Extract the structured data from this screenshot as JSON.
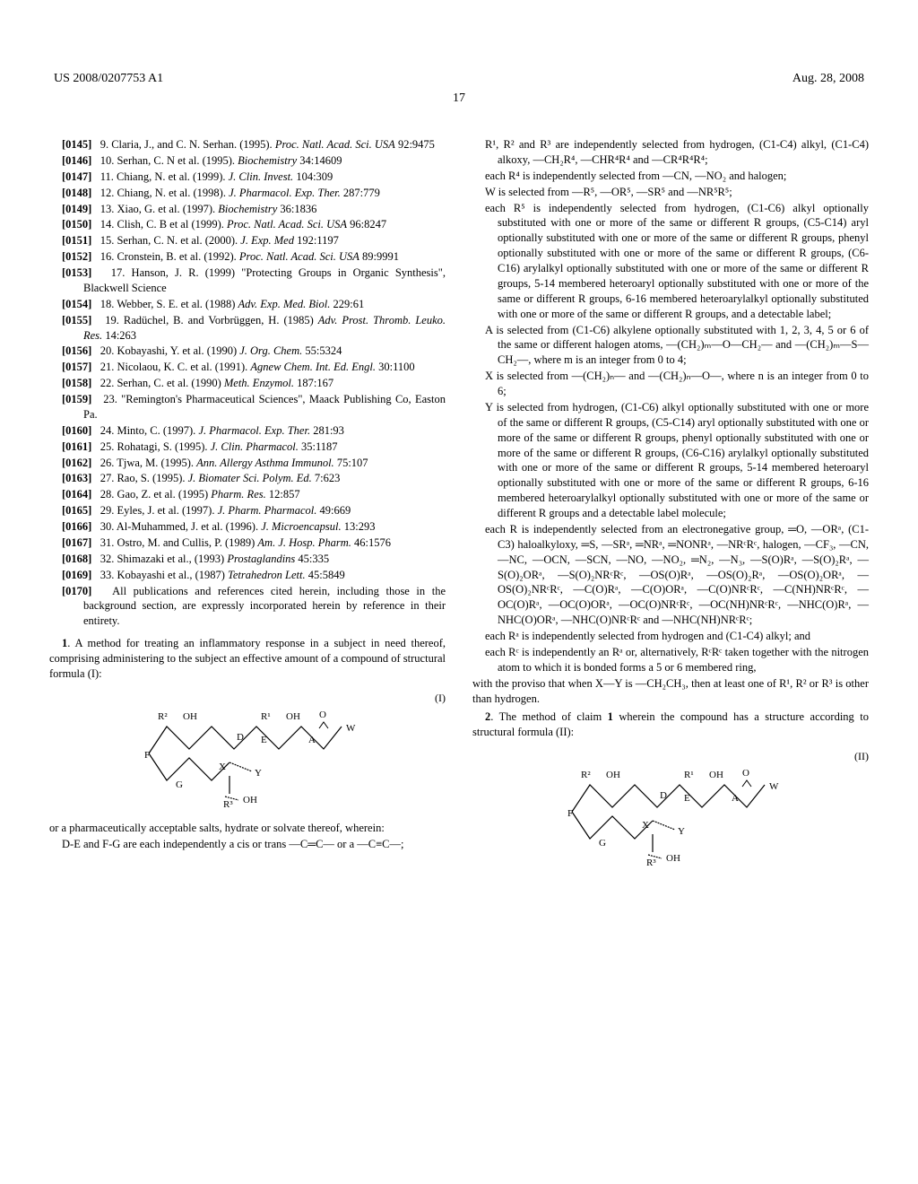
{
  "header": {
    "left": "US 2008/0207753 A1",
    "right": "Aug. 28, 2008"
  },
  "page_number": "17",
  "left_column": {
    "refs": [
      {
        "num": "[0145]",
        "text": "9. Claria, J., and C. N. Serhan. (1995). <i>Proc. Natl. Acad. Sci. USA</i> 92:9475"
      },
      {
        "num": "[0146]",
        "text": "10. Serhan, C. N et al. (1995). <i>Biochemistry</i> 34:14609"
      },
      {
        "num": "[0147]",
        "text": "11. Chiang, N. et al. (1999). <i>J. Clin. Invest.</i> 104:309"
      },
      {
        "num": "[0148]",
        "text": "12. Chiang, N. et al. (1998). <i>J. Pharmacol. Exp. Ther.</i> 287:779"
      },
      {
        "num": "[0149]",
        "text": "13. Xiao, G. et al. (1997). <i>Biochemistry</i> 36:1836"
      },
      {
        "num": "[0150]",
        "text": "14. Clish, C. B et al (1999). <i>Proc. Natl. Acad. Sci. USA</i> 96:8247"
      },
      {
        "num": "[0151]",
        "text": "15. Serhan, C. N. et al. (2000). <i>J. Exp. Med</i> 192:1197"
      },
      {
        "num": "[0152]",
        "text": "16. Cronstein, B. et al. (1992). <i>Proc. Natl. Acad. Sci. USA</i> 89:9991"
      },
      {
        "num": "[0153]",
        "text": "17. Hanson, J. R. (1999) \"Protecting Groups in Organic Synthesis\", Blackwell Science"
      },
      {
        "num": "[0154]",
        "text": "18. Webber, S. E. et al. (1988) <i>Adv. Exp. Med. Biol.</i> 229:61"
      },
      {
        "num": "[0155]",
        "text": "19. Radüchel, B. and Vorbrüggen, H. (1985) <i>Adv. Prost. Thromb. Leuko. Res.</i> 14:263"
      },
      {
        "num": "[0156]",
        "text": "20. Kobayashi, Y. et al. (1990) <i>J. Org. Chem.</i> 55:5324"
      },
      {
        "num": "[0157]",
        "text": "21. Nicolaou, K. C. et al. (1991). <i>Agnew Chem. Int. Ed. Engl.</i> 30:1100"
      },
      {
        "num": "[0158]",
        "text": "22. Serhan, C. et al. (1990) <i>Meth. Enzymol.</i> 187:167"
      },
      {
        "num": "[0159]",
        "text": "23. \"Remington's Pharmaceutical Sciences\", Maack Publishing Co, Easton Pa."
      },
      {
        "num": "[0160]",
        "text": "24. Minto, C. (1997). <i>J. Pharmacol. Exp. Ther.</i> 281:93"
      },
      {
        "num": "[0161]",
        "text": "25. Rohatagi, S. (1995). <i>J. Clin. Pharmacol.</i> 35:1187"
      },
      {
        "num": "[0162]",
        "text": "26. Tjwa, M. (1995). <i>Ann. Allergy Asthma Immunol.</i> 75:107"
      },
      {
        "num": "[0163]",
        "text": "27. Rao, S. (1995). <i>J. Biomater Sci. Polym. Ed.</i> 7:623"
      },
      {
        "num": "[0164]",
        "text": "28. Gao, Z. et al. (1995) <i>Pharm. Res.</i> 12:857"
      },
      {
        "num": "[0165]",
        "text": "29. Eyles, J. et al. (1997). <i>J. Pharm. Pharmacol.</i> 49:669"
      },
      {
        "num": "[0166]",
        "text": "30. Al-Muhammed, J. et al. (1996). <i>J. Microencapsul.</i> 13:293"
      },
      {
        "num": "[0167]",
        "text": "31. Ostro, M. and Cullis, P. (1989) <i>Am. J. Hosp. Pharm.</i> 46:1576"
      },
      {
        "num": "[0168]",
        "text": "32. Shimazaki et al., (1993) <i>Prostaglandins</i> 45:335"
      },
      {
        "num": "[0169]",
        "text": "33. Kobayashi et al., (1987) <i>Tetrahedron Lett.</i> 45:5849"
      }
    ],
    "para_0170": {
      "num": "[0170]",
      "text": "All publications and references cited herein, including those in the background section, are expressly incorporated herein by reference in their entirety."
    },
    "claim1_intro": "A method for treating an inflammatory response in a subject in need thereof, comprising administering to the subject an effective amount of a compound of structural formula (I):",
    "formula_I_label": "(I)",
    "claim1_continuation": "or a pharmaceutically acceptable salts, hydrate or solvate thereof, wherein:",
    "claim1_def1": "D-E and F-G are each independently a cis or trans —C═C— or a —C≡C—;"
  },
  "right_column": {
    "defs": [
      "R¹, R² and R³ are independently selected from hydrogen, (C1-C4) alkyl, (C1-C4) alkoxy, —CH₂R⁴, —CHR⁴R⁴ and —CR⁴R⁴R⁴;",
      "each R⁴ is independently selected from —CN, —NO₂ and halogen;",
      "W is selected from —R⁵, —OR⁵, —SR⁵ and —NR⁵R⁵;",
      "each R⁵ is independently selected from hydrogen, (C1-C6) alkyl optionally substituted with one or more of the same or different R groups, (C5-C14) aryl optionally substituted with one or more of the same or different R groups, phenyl optionally substituted with one or more of the same or different R groups, (C6-C16) arylalkyl optionally substituted with one or more of the same or different R groups, 5-14 membered heteroaryl optionally substituted with one or more of the same or different R groups, 6-16 membered heteroarylalkyl optionally substituted with one or more of the same or different R groups, and a detectable label;",
      "A is selected from (C1-C6) alkylene optionally substituted with 1, 2, 3, 4, 5 or 6 of the same or different halogen atoms, —(CH₂)ₘ—O—CH₂— and —(CH₂)ₘ—S—CH₂—, where m is an integer from 0 to 4;",
      "X is selected from —(CH₂)ₙ— and —(CH₂)ₙ—O—, where n is an integer from 0 to 6;",
      "Y is selected from hydrogen, (C1-C6) alkyl optionally substituted with one or more of the same or different R groups, (C5-C14) aryl optionally substituted with one or more of the same or different R groups, phenyl optionally substituted with one or more of the same or different R groups, (C6-C16) arylalkyl optionally substituted with one or more of the same or different R groups, 5-14 membered heteroaryl optionally substituted with one or more of the same or different R groups, 6-16 membered heteroarylalkyl optionally substituted with one or more of the same or different R groups and a detectable label molecule;",
      "each R is independently selected from an electronegative group, ═O, —ORᵃ, (C1-C3) haloalkyloxy, ═S, —SRᵃ, ═NRᵃ, ═NONRᵃ, —NRᶜRᶜ, halogen, —CF₃, —CN, —NC, —OCN, —SCN, —NO, —NO₂, ═N₂, —N₃, —S(O)Rᵃ, —S(O)₂Rᵃ, —S(O)₂ORᵃ, —S(O)₂NRᶜRᶜ, —OS(O)Rᵃ, —OS(O)₂Rᵃ, —OS(O)₂ORᵃ, —OS(O)₂NRᶜRᶜ, —C(O)Rᵃ, —C(O)ORᵃ, —C(O)NRᶜRᶜ, —C(NH)NRᶜRᶜ, —OC(O)Rᵃ, —OC(O)ORᵃ, —OC(O)NRᶜRᶜ, —OC(NH)NRᶜRᶜ, —NHC(O)Rᵃ, —NHC(O)ORᵃ, —NHC(O)NRᶜRᶜ and —NHC(NH)NRᶜRᶜ;",
      "each Rᵃ is independently selected from hydrogen and (C1-C4) alkyl; and",
      "each Rᶜ is independently an Rᵃ or, alternatively, RᶜRᶜ taken together with the nitrogen atom to which it is bonded forms a 5 or 6 membered ring,"
    ],
    "proviso": "with the proviso that when X—Y is —CH₂CH₃, then at least one of R¹, R² or R³ is other than hydrogen.",
    "claim2_text": "The method of claim <b>1</b> wherein the compound has a structure according to structural formula (II):",
    "formula_II_label": "(II)"
  },
  "structure_labels": {
    "R1": "R¹",
    "R2": "R²",
    "R3": "R³",
    "OH": "OH",
    "O": "O",
    "D": "D",
    "E": "E",
    "A": "A",
    "W": "W",
    "F": "F",
    "G": "G",
    "X": "X",
    "Y": "Y"
  }
}
